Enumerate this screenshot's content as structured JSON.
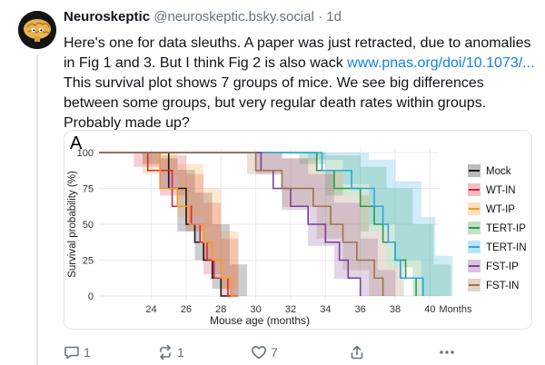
{
  "post": {
    "author_name": "Neuroskeptic",
    "author_handle": "@neuroskeptic.bsky.social",
    "separator": "·",
    "time": "1d",
    "text_before_link": "Here's one for data sleuths. A paper was just retracted, due to anomalies in Fig 1 and 3. But I think Fig 2 is also wack ",
    "link_text": "www.pnas.org/doi/10.1073/...",
    "text_after_link": " This survival plot shows 7 groups of mice. We see big differences between some groups, but very regular death rates within groups. Probably made up?"
  },
  "actions": {
    "reply_count": "1",
    "repost_count": "1",
    "like_count": "7"
  },
  "icons": {
    "avatar": "brain-avatar-icon",
    "reply": "reply-icon",
    "repost": "repost-icon",
    "like": "heart-icon",
    "share": "share-icon",
    "more": "more-icon"
  },
  "colors": {
    "link": "#1081e6",
    "Mock": "#1a1a1a",
    "WT-IN": "#d7263d",
    "WT-IP": "#f59a23",
    "TERT-IP": "#2b9a48",
    "TERT-IN": "#29a8e0",
    "FST-IP": "#7d3f98",
    "FST-IN": "#a0724a"
  },
  "chart_data": {
    "type": "line",
    "panel_label": "A",
    "xlabel": "Mouse age (months)",
    "ylabel": "Survival probability (%)",
    "x_unit_label": "Months",
    "xlim": [
      21,
      40.5
    ],
    "ylim": [
      0,
      100
    ],
    "x_ticks": [
      24,
      26,
      28,
      30,
      32,
      34,
      36,
      38,
      40
    ],
    "y_ticks": [
      0,
      25,
      50,
      75,
      100
    ],
    "grid": true,
    "legend_position": "right",
    "series": [
      {
        "name": "Mock",
        "color": "#1a1a1a",
        "x": [
          21,
          25.0,
          26.0,
          26.5,
          27.0,
          27.5,
          28.0,
          29.0
        ],
        "y": [
          100,
          75,
          50,
          37.5,
          25,
          12.5,
          0,
          0
        ],
        "band": [
          [
            21,
            100,
            100
          ],
          [
            23.5,
            92,
            100
          ],
          [
            24.5,
            75,
            96
          ],
          [
            25.5,
            45,
            88
          ],
          [
            26.5,
            25,
            72
          ],
          [
            27.5,
            5,
            50
          ],
          [
            28.5,
            0,
            22
          ]
        ]
      },
      {
        "name": "WT-IN",
        "color": "#d7263d",
        "x": [
          21,
          23.8,
          25.2,
          26.3,
          26.8,
          27.2,
          27.6,
          28.4,
          29.0
        ],
        "y": [
          100,
          87.5,
          62.5,
          50,
          37.5,
          25,
          12.5,
          0,
          0
        ],
        "band": [
          [
            21,
            100,
            100
          ],
          [
            23,
            90,
            100
          ],
          [
            24.5,
            70,
            98
          ],
          [
            26,
            45,
            85
          ],
          [
            27,
            15,
            65
          ],
          [
            28,
            0,
            40
          ]
        ]
      },
      {
        "name": "WT-IP",
        "color": "#f59a23",
        "x": [
          21,
          24.5,
          25.5,
          26.2,
          27.0,
          27.5,
          28.0,
          28.6,
          29.0
        ],
        "y": [
          100,
          75,
          62.5,
          50,
          37.5,
          25,
          12.5,
          0,
          0
        ],
        "band": [
          [
            21,
            100,
            100
          ],
          [
            23.5,
            85,
            100
          ],
          [
            25.5,
            55,
            92
          ],
          [
            27,
            25,
            75
          ],
          [
            28,
            5,
            45
          ]
        ]
      },
      {
        "name": "TERT-IP",
        "color": "#2b9a48",
        "x": [
          21,
          33.5,
          34.5,
          36.0,
          36.8,
          37.3,
          38.0,
          38.6,
          39.2
        ],
        "y": [
          100,
          87.5,
          75,
          62.5,
          50,
          37.5,
          25,
          12.5,
          0
        ],
        "band": [
          [
            21,
            100,
            100
          ],
          [
            32.5,
            92,
            100
          ],
          [
            34,
            70,
            98
          ],
          [
            36,
            45,
            90
          ],
          [
            37.5,
            20,
            75
          ],
          [
            39,
            0,
            50
          ],
          [
            40.2,
            0,
            22
          ]
        ]
      },
      {
        "name": "TERT-IN",
        "color": "#29a8e0",
        "x": [
          21,
          33.8,
          35.5,
          36.8,
          37.3,
          37.6,
          38.0,
          38.3,
          39.6
        ],
        "y": [
          100,
          87.5,
          75,
          62.5,
          50,
          37.5,
          25,
          12.5,
          0
        ],
        "band": [
          [
            21,
            100,
            100
          ],
          [
            33,
            95,
            100
          ],
          [
            35,
            78,
            100
          ],
          [
            36.5,
            50,
            95
          ],
          [
            38,
            25,
            80
          ],
          [
            39.5,
            0,
            55
          ],
          [
            40.3,
            0,
            28
          ]
        ]
      },
      {
        "name": "FST-IP",
        "color": "#7d3f98",
        "x": [
          21,
          30.3,
          31.0,
          32.0,
          33.0,
          34.0,
          34.8,
          35.3,
          36.0
        ],
        "y": [
          100,
          87.5,
          75,
          62.5,
          50,
          37.5,
          25,
          12.5,
          0
        ],
        "band": [
          [
            21,
            100,
            100
          ],
          [
            30,
            85,
            100
          ],
          [
            31.5,
            60,
            96
          ],
          [
            33,
            35,
            85
          ],
          [
            34.5,
            12,
            65
          ],
          [
            36,
            0,
            40
          ],
          [
            37,
            0,
            18
          ]
        ]
      },
      {
        "name": "FST-IN",
        "color": "#a0724a",
        "x": [
          21,
          30.0,
          31.5,
          33.3,
          34.3,
          35.0,
          35.8,
          36.8,
          37.3
        ],
        "y": [
          100,
          87.5,
          75,
          62.5,
          50,
          37.5,
          25,
          12.5,
          0
        ],
        "band": [
          [
            21,
            100,
            100
          ],
          [
            29.5,
            85,
            100
          ],
          [
            31.5,
            62,
            96
          ],
          [
            33.5,
            40,
            88
          ],
          [
            35,
            18,
            70
          ],
          [
            36.5,
            0,
            45
          ],
          [
            37.5,
            0,
            20
          ]
        ]
      }
    ]
  }
}
